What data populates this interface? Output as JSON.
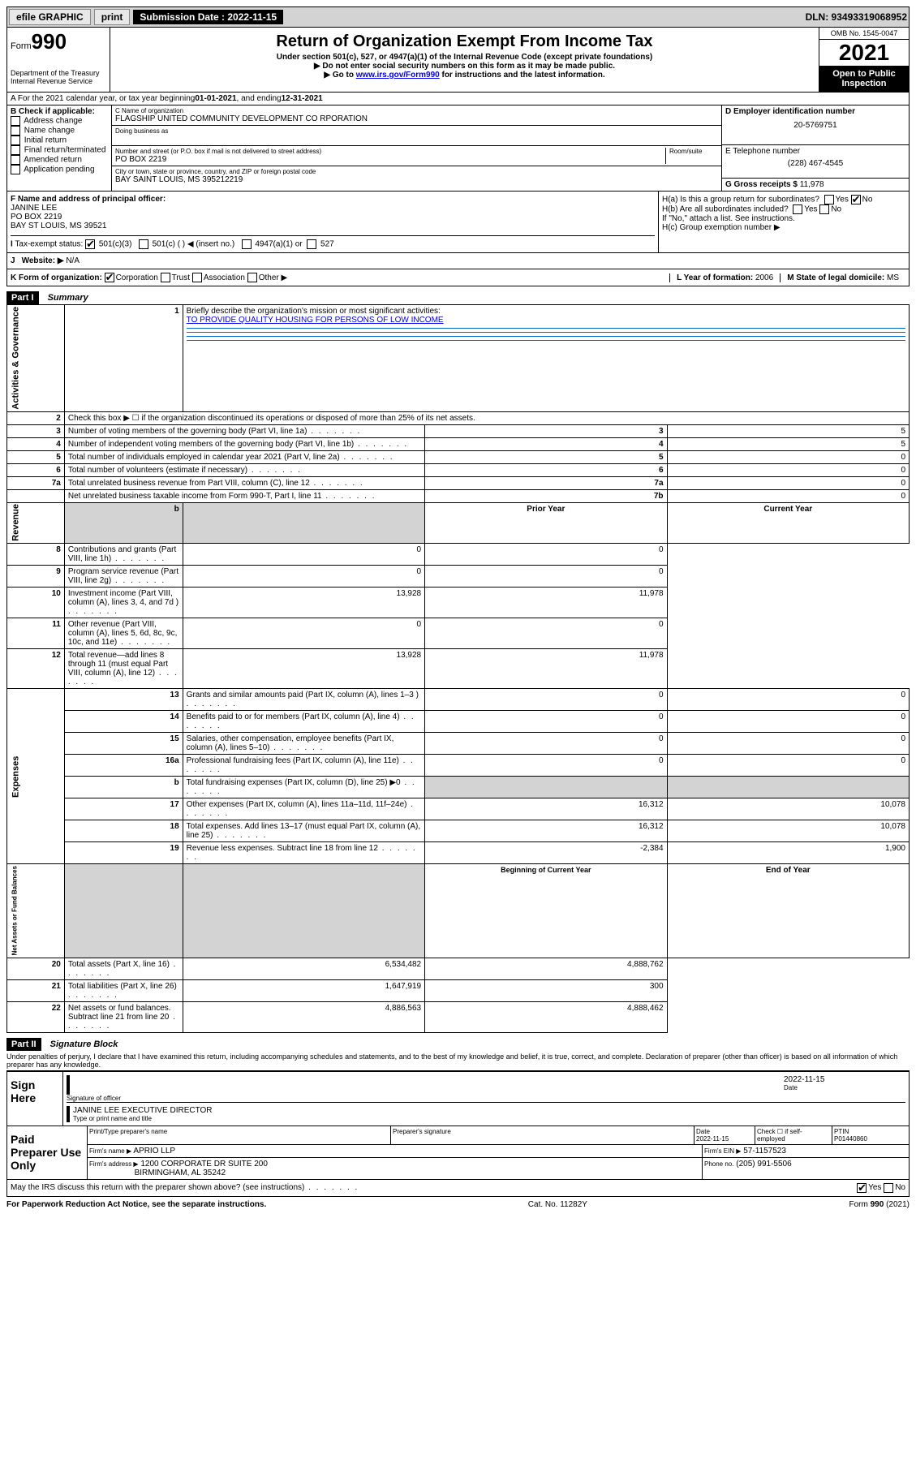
{
  "topbar": {
    "efile": "efile GRAPHIC",
    "print": "print",
    "sub_label": "Submission Date : 2022-11-15",
    "dln": "DLN: 93493319068952"
  },
  "header": {
    "form_label": "Form",
    "form_num": "990",
    "title": "Return of Organization Exempt From Income Tax",
    "sub1": "Under section 501(c), 527, or 4947(a)(1) of the Internal Revenue Code (except private foundations)",
    "sub2": "▶ Do not enter social security numbers on this form as it may be made public.",
    "sub3_pre": "▶ Go to ",
    "sub3_link": "www.irs.gov/Form990",
    "sub3_post": " for instructions and the latest information.",
    "dept": "Department of the Treasury",
    "irs": "Internal Revenue Service",
    "omb": "OMB No. 1545-0047",
    "year": "2021",
    "open": "Open to Public Inspection"
  },
  "row_a": {
    "text_pre": "A For the 2021 calendar year, or tax year beginning ",
    "begin": "01-01-2021",
    "mid": " , and ending ",
    "end": "12-31-2021"
  },
  "col_b": {
    "label": "B Check if applicable:",
    "items": [
      "Address change",
      "Name change",
      "Initial return",
      "Final return/terminated",
      "Amended return",
      "Application pending"
    ]
  },
  "col_c": {
    "name_label": "C Name of organization",
    "name": "FLAGSHIP UNITED COMMUNITY DEVELOPMENT CO RPORATION",
    "dba_label": "Doing business as",
    "addr_label": "Number and street (or P.O. box if mail is not delivered to street address)",
    "room": "Room/suite",
    "addr": "PO BOX 2219",
    "city_label": "City or town, state or province, country, and ZIP or foreign postal code",
    "city": "BAY SAINT LOUIS, MS  395212219"
  },
  "col_d": {
    "ein_label": "D Employer identification number",
    "ein": "20-5769751",
    "phone_label": "E Telephone number",
    "phone": "(228) 467-4545",
    "gross_label": "G Gross receipts $",
    "gross": "11,978"
  },
  "section_f": {
    "f_label": "F Name and address of principal officer:",
    "f_name": "JANINE LEE",
    "f_addr1": "PO BOX 2219",
    "f_addr2": "BAY ST LOUIS, MS  39521",
    "i_label": "I",
    "tax_label": "Tax-exempt status:",
    "opt1": "501(c)(3)",
    "opt2": "501(c) (  ) ◀ (insert no.)",
    "opt3": "4947(a)(1) or",
    "opt4": "527"
  },
  "section_h": {
    "ha": "H(a)  Is this a group return for subordinates?",
    "hb": "H(b)  Are all subordinates included?",
    "hb_note": "If \"No,\" attach a list. See instructions.",
    "hc": "H(c)  Group exemption number ▶",
    "yes": "Yes",
    "no": "No"
  },
  "row_j": {
    "label": "J",
    "web": "Website: ▶",
    "val": "N/A"
  },
  "row_k": {
    "k_label": "K Form of organization:",
    "opts": [
      "Corporation",
      "Trust",
      "Association",
      "Other ▶"
    ],
    "l_label": "L Year of formation:",
    "l_val": "2006",
    "m_label": "M State of legal domicile:",
    "m_val": "MS"
  },
  "part1": {
    "header": "Part I",
    "title": "Summary",
    "q1_label": "Briefly describe the organization's mission or most significant activities:",
    "q1_val": "TO PROVIDE QUALITY HOUSING FOR PERSONS OF LOW INCOME",
    "rows": [
      {
        "n": "2",
        "t": "Check this box ▶ ☐  if the organization discontinued its operations or disposed of more than 25% of its net assets.",
        "rn": "",
        "pv": "",
        "cv": ""
      },
      {
        "n": "3",
        "t": "Number of voting members of the governing body (Part VI, line 1a)",
        "rn": "3",
        "pv": "",
        "cv": "5"
      },
      {
        "n": "4",
        "t": "Number of independent voting members of the governing body (Part VI, line 1b)",
        "rn": "4",
        "pv": "",
        "cv": "5"
      },
      {
        "n": "5",
        "t": "Total number of individuals employed in calendar year 2021 (Part V, line 2a)",
        "rn": "5",
        "pv": "",
        "cv": "0"
      },
      {
        "n": "6",
        "t": "Total number of volunteers (estimate if necessary)",
        "rn": "6",
        "pv": "",
        "cv": "0"
      },
      {
        "n": "7a",
        "t": "Total unrelated business revenue from Part VIII, column (C), line 12",
        "rn": "7a",
        "pv": "",
        "cv": "0"
      },
      {
        "n": "",
        "t": "Net unrelated business taxable income from Form 990-T, Part I, line 11",
        "rn": "7b",
        "pv": "",
        "cv": "0"
      }
    ],
    "col_headers": {
      "prior": "Prior Year",
      "current": "Current Year",
      "boy": "Beginning of Current Year",
      "eoy": "End of Year"
    },
    "revenue": [
      {
        "n": "8",
        "t": "Contributions and grants (Part VIII, line 1h)",
        "pv": "0",
        "cv": "0"
      },
      {
        "n": "9",
        "t": "Program service revenue (Part VIII, line 2g)",
        "pv": "0",
        "cv": "0"
      },
      {
        "n": "10",
        "t": "Investment income (Part VIII, column (A), lines 3, 4, and 7d )",
        "pv": "13,928",
        "cv": "11,978"
      },
      {
        "n": "11",
        "t": "Other revenue (Part VIII, column (A), lines 5, 6d, 8c, 9c, 10c, and 11e)",
        "pv": "0",
        "cv": "0"
      },
      {
        "n": "12",
        "t": "Total revenue—add lines 8 through 11 (must equal Part VIII, column (A), line 12)",
        "pv": "13,928",
        "cv": "11,978"
      }
    ],
    "expenses": [
      {
        "n": "13",
        "t": "Grants and similar amounts paid (Part IX, column (A), lines 1–3 )",
        "pv": "0",
        "cv": "0"
      },
      {
        "n": "14",
        "t": "Benefits paid to or for members (Part IX, column (A), line 4)",
        "pv": "0",
        "cv": "0"
      },
      {
        "n": "15",
        "t": "Salaries, other compensation, employee benefits (Part IX, column (A), lines 5–10)",
        "pv": "0",
        "cv": "0"
      },
      {
        "n": "16a",
        "t": "Professional fundraising fees (Part IX, column (A), line 11e)",
        "pv": "0",
        "cv": "0"
      },
      {
        "n": "b",
        "t": "Total fundraising expenses (Part IX, column (D), line 25) ▶0",
        "pv": "",
        "cv": "",
        "shade": true
      },
      {
        "n": "17",
        "t": "Other expenses (Part IX, column (A), lines 11a–11d, 11f–24e)",
        "pv": "16,312",
        "cv": "10,078"
      },
      {
        "n": "18",
        "t": "Total expenses. Add lines 13–17 (must equal Part IX, column (A), line 25)",
        "pv": "16,312",
        "cv": "10,078"
      },
      {
        "n": "19",
        "t": "Revenue less expenses. Subtract line 18 from line 12",
        "pv": "-2,384",
        "cv": "1,900"
      }
    ],
    "netassets": [
      {
        "n": "20",
        "t": "Total assets (Part X, line 16)",
        "pv": "6,534,482",
        "cv": "4,888,762"
      },
      {
        "n": "21",
        "t": "Total liabilities (Part X, line 26)",
        "pv": "1,647,919",
        "cv": "300"
      },
      {
        "n": "22",
        "t": "Net assets or fund balances. Subtract line 21 from line 20",
        "pv": "4,886,563",
        "cv": "4,888,462"
      }
    ],
    "vert_labels": {
      "gov": "Activities & Governance",
      "rev": "Revenue",
      "exp": "Expenses",
      "net": "Net Assets or Fund Balances"
    }
  },
  "part2": {
    "header": "Part II",
    "title": "Signature Block",
    "penalties": "Under penalties of perjury, I declare that I have examined this return, including accompanying schedules and statements, and to the best of my knowledge and belief, it is true, correct, and complete. Declaration of preparer (other than officer) is based on all information of which preparer has any knowledge.",
    "sign_here": "Sign Here",
    "sig_officer": "Signature of officer",
    "date": "Date",
    "sig_date": "2022-11-15",
    "officer_name": "JANINE LEE EXECUTIVE DIRECTOR",
    "type_name": "Type or print name and title",
    "paid": "Paid Preparer Use Only",
    "prep_name_label": "Print/Type preparer's name",
    "prep_sig_label": "Preparer's signature",
    "prep_date_label": "Date",
    "prep_date": "2022-11-15",
    "check_self": "Check ☐ if self-employed",
    "ptin_label": "PTIN",
    "ptin": "P01440860",
    "firm_name_label": "Firm's name ▶",
    "firm_name": "APRIO LLP",
    "firm_ein_label": "Firm's EIN ▶",
    "firm_ein": "57-1157523",
    "firm_addr_label": "Firm's address ▶",
    "firm_addr1": "1200 CORPORATE DR SUITE 200",
    "firm_addr2": "BIRMINGHAM, AL  35242",
    "phone_label": "Phone no.",
    "phone": "(205) 991-5506",
    "discuss": "May the IRS discuss this return with the preparer shown above? (see instructions)"
  },
  "footer": {
    "left": "For Paperwork Reduction Act Notice, see the separate instructions.",
    "mid": "Cat. No. 11282Y",
    "right": "Form 990 (2021)"
  }
}
